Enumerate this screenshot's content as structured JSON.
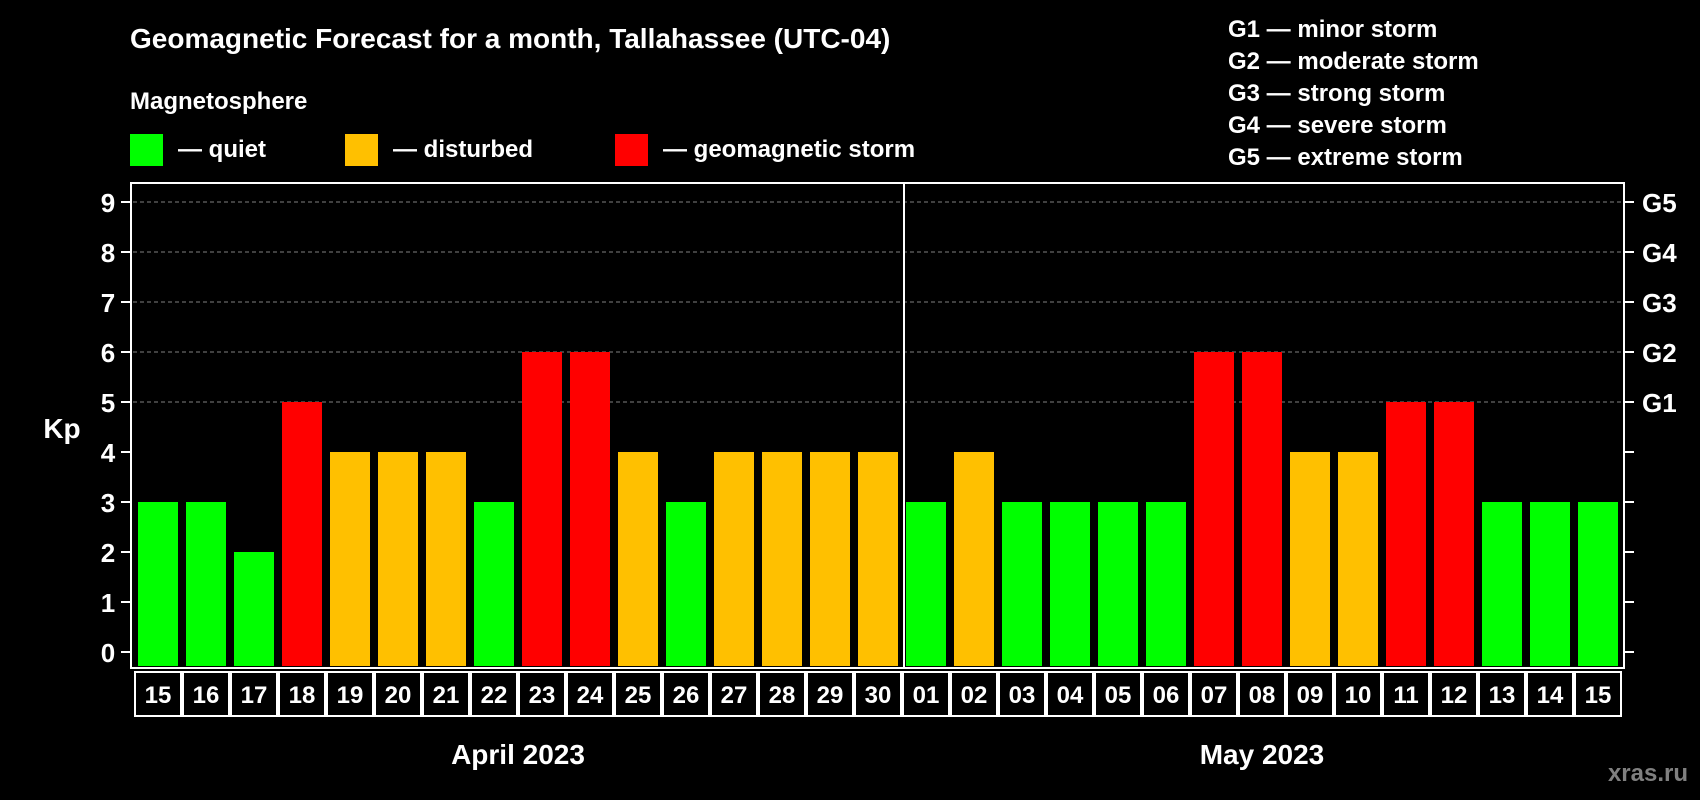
{
  "colors": {
    "quiet": "#00ff00",
    "disturbed": "#ffc000",
    "storm": "#ff0000",
    "background": "#000000",
    "foreground": "#ffffff",
    "grid": "#808080",
    "watermark": "#808080"
  },
  "legend": {
    "heading": "Magnetosphere",
    "items": [
      {
        "level": "quiet",
        "label": "— quiet"
      },
      {
        "level": "disturbed",
        "label": "— disturbed"
      },
      {
        "level": "storm",
        "label": "— geomagnetic storm"
      }
    ]
  },
  "storm_scale": [
    "G1 — minor storm",
    "G2 — moderate storm",
    "G3 — strong storm",
    "G4 — severe storm",
    "G5 — extreme storm"
  ],
  "watermark": "xras.ru",
  "chart_data": {
    "type": "bar",
    "title": "Geomagnetic Forecast for a month, Tallahassee (UTC-04)",
    "ylabel": "Kp",
    "ylim": [
      0,
      9
    ],
    "yticks": [
      "0",
      "1",
      "2",
      "3",
      "4",
      "5",
      "6",
      "7",
      "8",
      "9"
    ],
    "right_axis": [
      {
        "kp": 5,
        "label": "G1"
      },
      {
        "kp": 6,
        "label": "G2"
      },
      {
        "kp": 7,
        "label": "G3"
      },
      {
        "kp": 8,
        "label": "G4"
      },
      {
        "kp": 9,
        "label": "G5"
      }
    ],
    "grid": "dashed horizontal at Kp 5–9",
    "months": [
      {
        "label": "April 2023",
        "days": [
          "15",
          "16",
          "17",
          "18",
          "19",
          "20",
          "21",
          "22",
          "23",
          "24",
          "25",
          "26",
          "27",
          "28",
          "29",
          "30"
        ]
      },
      {
        "label": "May 2023",
        "days": [
          "01",
          "02",
          "03",
          "04",
          "05",
          "06",
          "07",
          "08",
          "09",
          "10",
          "11",
          "12",
          "13",
          "14",
          "15"
        ]
      }
    ],
    "values": [
      3,
      3,
      2,
      5,
      4,
      4,
      4,
      3,
      6,
      6,
      4,
      3,
      4,
      4,
      4,
      4,
      3,
      4,
      3,
      3,
      3,
      3,
      6,
      6,
      4,
      4,
      5,
      5,
      3,
      3,
      3
    ],
    "levels": [
      "quiet",
      "quiet",
      "quiet",
      "storm",
      "disturbed",
      "disturbed",
      "disturbed",
      "quiet",
      "storm",
      "storm",
      "disturbed",
      "quiet",
      "disturbed",
      "disturbed",
      "disturbed",
      "disturbed",
      "quiet",
      "disturbed",
      "quiet",
      "quiet",
      "quiet",
      "quiet",
      "storm",
      "storm",
      "disturbed",
      "disturbed",
      "storm",
      "storm",
      "quiet",
      "quiet",
      "quiet"
    ]
  }
}
